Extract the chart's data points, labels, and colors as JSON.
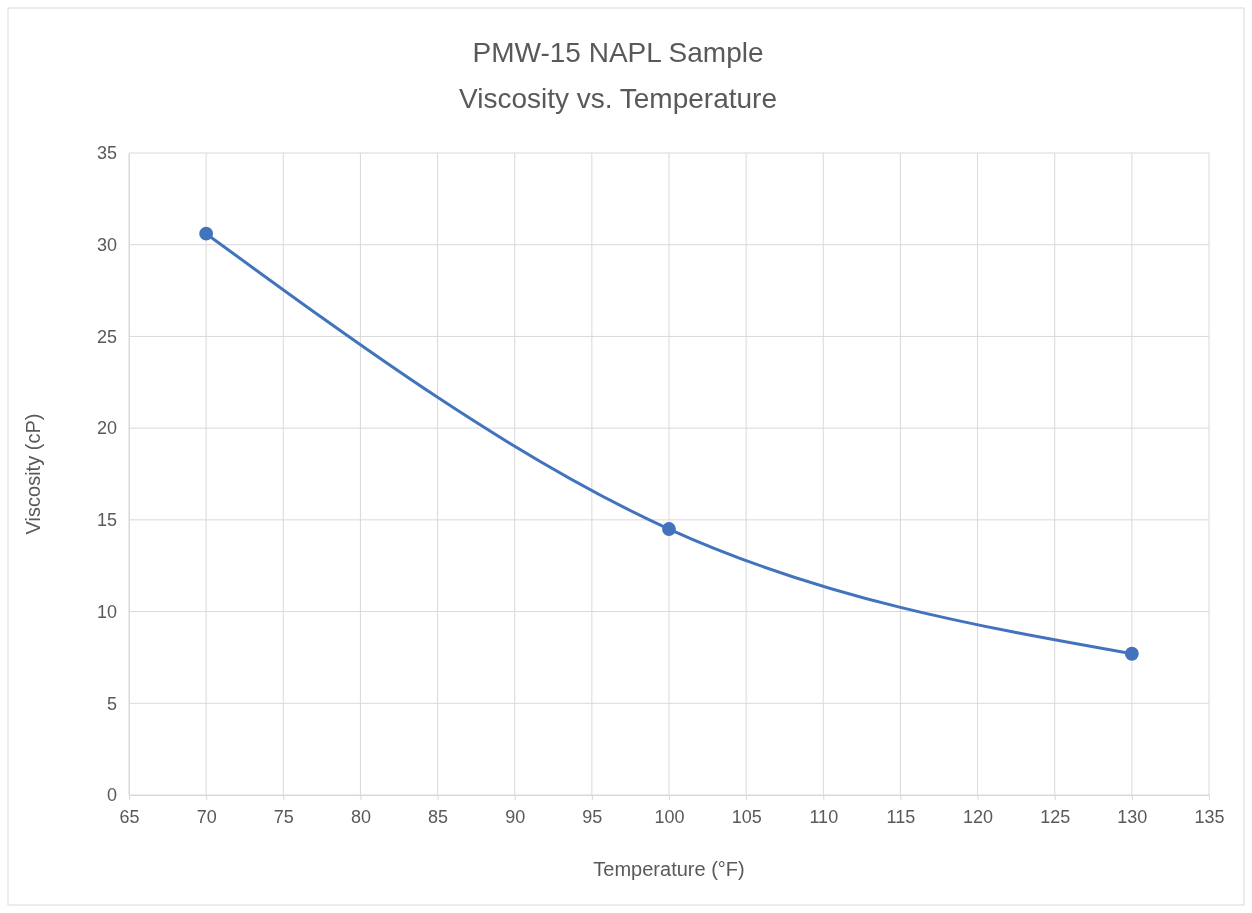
{
  "chart_data": {
    "type": "line",
    "title": "PMW-15 NAPL Sample",
    "subtitle": "Viscosity vs. Temperature",
    "xlabel": "Temperature (°F)",
    "ylabel": "Viscosity (cP)",
    "x": [
      70,
      100,
      130
    ],
    "series": [
      {
        "color": "#4273bd",
        "values": [
          30.6,
          14.5,
          7.7
        ]
      }
    ],
    "xlim": [
      65,
      135
    ],
    "xticks": [
      65,
      70,
      75,
      80,
      85,
      90,
      95,
      100,
      105,
      110,
      115,
      120,
      125,
      130,
      135
    ],
    "ylim": [
      0,
      35
    ],
    "yticks": [
      0,
      5,
      10,
      15,
      20,
      25,
      30,
      35
    ],
    "grid": true,
    "marker": "circle",
    "line_style": "solid"
  }
}
